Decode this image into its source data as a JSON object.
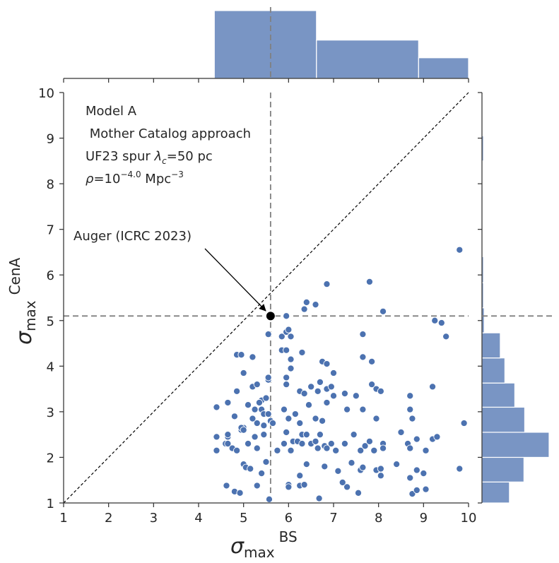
{
  "chart_data": {
    "type": "scatter",
    "title": "",
    "xlabel": "σ_max BS",
    "ylabel": "σ_max CenA",
    "xlim": [
      1,
      10
    ],
    "ylim": [
      1,
      10
    ],
    "xticks": [
      "1",
      "2",
      "3",
      "4",
      "5",
      "6",
      "7",
      "8",
      "9",
      "10"
    ],
    "yticks": [
      "1",
      "2",
      "3",
      "4",
      "5",
      "6",
      "7",
      "8",
      "9",
      "10"
    ],
    "x_axis_label": {
      "symbol": "σ",
      "subscript": "max",
      "superscript": "BS"
    },
    "y_axis_label": {
      "symbol": "σ",
      "subscript": "max",
      "superscript": "CenA"
    },
    "info_text": {
      "line1": "Model A",
      "line2": " Mother Catalog approach",
      "line3_prefix": "UF23 spur ",
      "line3_symbol": "λ",
      "line3_subscript": "c",
      "line3_suffix": "=50 pc",
      "line4_symbol": "ρ",
      "line4_mid": "=10",
      "line4_exponent": "−4.0",
      "line4_unit": " Mpc",
      "line4_unit_exponent": "−3"
    },
    "auger": {
      "label": "Auger (ICRC 2023)",
      "x": 5.6,
      "y": 5.1
    },
    "diagonal": {
      "from": [
        1,
        1
      ],
      "to": [
        10,
        10
      ]
    },
    "colors": {
      "points": "#4c72b0",
      "hist": "#4c72b0",
      "reference": "#808080",
      "auger": "#000000"
    },
    "histogram_x": {
      "bins": [
        {
          "from": 4.35,
          "to": 6.62,
          "count": 23
        },
        {
          "from": 6.62,
          "to": 8.89,
          "count": 13
        },
        {
          "from": 8.89,
          "to": 10.0,
          "count": 7
        }
      ]
    },
    "histogram_y": {
      "bins": [
        {
          "from": 1.0,
          "to": 1.46,
          "count": 36
        },
        {
          "from": 1.46,
          "to": 2.0,
          "count": 55
        },
        {
          "from": 2.0,
          "to": 2.55,
          "count": 88
        },
        {
          "from": 2.55,
          "to": 3.1,
          "count": 56
        },
        {
          "from": 3.1,
          "to": 3.63,
          "count": 43
        },
        {
          "from": 3.63,
          "to": 4.18,
          "count": 30
        },
        {
          "from": 4.18,
          "to": 4.73,
          "count": 24
        },
        {
          "from": 4.73,
          "to": 5.28,
          "count": 3
        },
        {
          "from": 5.28,
          "to": 5.83,
          "count": 2
        },
        {
          "from": 5.83,
          "to": 6.4,
          "count": 2
        },
        {
          "from": 6.4,
          "to": 6.93,
          "count": 1
        },
        {
          "from": 8.5,
          "to": 9.05,
          "count": 2
        },
        {
          "from": 9.05,
          "to": 9.6,
          "count": 1
        }
      ]
    },
    "points": [
      [
        5.57,
        1.08
      ],
      [
        4.8,
        1.25
      ],
      [
        4.92,
        1.22
      ],
      [
        5.3,
        1.38
      ],
      [
        6.0,
        1.4
      ],
      [
        6.0,
        1.35
      ],
      [
        6.25,
        1.38
      ],
      [
        6.35,
        1.4
      ],
      [
        6.68,
        1.1
      ],
      [
        7.3,
        1.35
      ],
      [
        7.55,
        1.22
      ],
      [
        7.2,
        1.45
      ],
      [
        8.75,
        1.2
      ],
      [
        8.85,
        1.28
      ],
      [
        9.05,
        1.3
      ],
      [
        9.8,
        1.75
      ],
      [
        4.62,
        1.38
      ],
      [
        5.0,
        1.85
      ],
      [
        5.05,
        1.78
      ],
      [
        5.15,
        1.75
      ],
      [
        5.4,
        1.65
      ],
      [
        5.5,
        1.9
      ],
      [
        6.25,
        1.6
      ],
      [
        6.4,
        1.85
      ],
      [
        6.8,
        1.8
      ],
      [
        7.1,
        1.7
      ],
      [
        7.6,
        1.72
      ],
      [
        7.65,
        1.78
      ],
      [
        7.4,
        1.88
      ],
      [
        7.95,
        1.72
      ],
      [
        8.05,
        1.75
      ],
      [
        8.05,
        1.6
      ],
      [
        8.4,
        1.85
      ],
      [
        8.7,
        1.55
      ],
      [
        8.85,
        1.72
      ],
      [
        9.0,
        1.65
      ],
      [
        4.4,
        2.15
      ],
      [
        4.4,
        2.45
      ],
      [
        4.6,
        2.3
      ],
      [
        4.65,
        2.3
      ],
      [
        4.65,
        2.45
      ],
      [
        4.65,
        2.5
      ],
      [
        4.75,
        2.2
      ],
      [
        4.85,
        2.15
      ],
      [
        4.95,
        2.6
      ],
      [
        5.0,
        2.65
      ],
      [
        5.1,
        2.3
      ],
      [
        5.25,
        2.45
      ],
      [
        5.3,
        2.2
      ],
      [
        5.45,
        2.7
      ],
      [
        5.45,
        2.5
      ],
      [
        5.75,
        2.15
      ],
      [
        5.9,
        2.3
      ],
      [
        5.95,
        2.55
      ],
      [
        6.05,
        2.15
      ],
      [
        6.1,
        2.35
      ],
      [
        6.2,
        2.35
      ],
      [
        6.3,
        2.3
      ],
      [
        6.3,
        2.5
      ],
      [
        6.4,
        2.5
      ],
      [
        6.5,
        2.3
      ],
      [
        6.6,
        2.35
      ],
      [
        6.65,
        2.2
      ],
      [
        6.7,
        2.5
      ],
      [
        6.8,
        2.25
      ],
      [
        6.85,
        2.2
      ],
      [
        6.95,
        2.3
      ],
      [
        7.05,
        2.15
      ],
      [
        7.25,
        2.3
      ],
      [
        7.45,
        2.5
      ],
      [
        7.6,
        2.15
      ],
      [
        7.7,
        2.25
      ],
      [
        7.8,
        2.35
      ],
      [
        7.9,
        2.15
      ],
      [
        8.1,
        2.3
      ],
      [
        8.1,
        2.2
      ],
      [
        8.5,
        2.55
      ],
      [
        8.65,
        2.3
      ],
      [
        8.7,
        2.2
      ],
      [
        8.85,
        2.4
      ],
      [
        9.05,
        2.15
      ],
      [
        9.2,
        2.4
      ],
      [
        9.3,
        2.45
      ],
      [
        9.9,
        2.75
      ],
      [
        4.4,
        3.1
      ],
      [
        4.65,
        3.2
      ],
      [
        4.8,
        2.9
      ],
      [
        4.95,
        2.65
      ],
      [
        5.0,
        2.6
      ],
      [
        5.1,
        3.15
      ],
      [
        5.2,
        2.85
      ],
      [
        5.25,
        3.05
      ],
      [
        5.3,
        2.75
      ],
      [
        5.4,
        3.05
      ],
      [
        5.4,
        3.25
      ],
      [
        5.45,
        2.95
      ],
      [
        5.5,
        3.3
      ],
      [
        5.55,
        2.95
      ],
      [
        5.6,
        2.8
      ],
      [
        5.65,
        2.75
      ],
      [
        5.9,
        3.05
      ],
      [
        6.0,
        2.85
      ],
      [
        6.15,
        2.95
      ],
      [
        6.25,
        2.75
      ],
      [
        6.45,
        3.15
      ],
      [
        6.6,
        2.85
      ],
      [
        6.75,
        2.8
      ],
      [
        6.85,
        3.2
      ],
      [
        7.0,
        3.35
      ],
      [
        7.3,
        3.05
      ],
      [
        7.5,
        3.35
      ],
      [
        7.65,
        3.05
      ],
      [
        7.95,
        2.85
      ],
      [
        8.7,
        3.05
      ],
      [
        8.75,
        2.85
      ],
      [
        8.7,
        3.35
      ],
      [
        4.85,
        3.45
      ],
      [
        5.0,
        3.85
      ],
      [
        5.2,
        3.55
      ],
      [
        5.3,
        3.6
      ],
      [
        5.35,
        3.2
      ],
      [
        5.55,
        3.7
      ],
      [
        5.95,
        3.75
      ],
      [
        5.95,
        3.6
      ],
      [
        6.25,
        3.45
      ],
      [
        6.35,
        3.4
      ],
      [
        6.5,
        3.55
      ],
      [
        6.65,
        3.45
      ],
      [
        6.7,
        3.65
      ],
      [
        6.85,
        3.5
      ],
      [
        6.95,
        3.55
      ],
      [
        7.0,
        3.85
      ],
      [
        7.25,
        3.4
      ],
      [
        7.85,
        3.6
      ],
      [
        7.95,
        3.5
      ],
      [
        8.05,
        3.45
      ],
      [
        9.2,
        3.55
      ],
      [
        5.55,
        3.75
      ],
      [
        4.85,
        4.25
      ],
      [
        4.95,
        4.25
      ],
      [
        5.2,
        4.2
      ],
      [
        5.85,
        4.35
      ],
      [
        5.95,
        4.35
      ],
      [
        6.05,
        4.15
      ],
      [
        6.05,
        3.95
      ],
      [
        6.3,
        4.3
      ],
      [
        6.75,
        4.1
      ],
      [
        6.85,
        4.05
      ],
      [
        7.65,
        4.2
      ],
      [
        7.85,
        4.1
      ],
      [
        5.55,
        4.7
      ],
      [
        5.85,
        4.65
      ],
      [
        5.95,
        4.75
      ],
      [
        6.0,
        4.8
      ],
      [
        6.05,
        4.65
      ],
      [
        7.65,
        4.7
      ],
      [
        9.25,
        5.0
      ],
      [
        9.4,
        4.95
      ],
      [
        9.5,
        4.65
      ],
      [
        5.95,
        5.1
      ],
      [
        6.35,
        5.25
      ],
      [
        6.4,
        5.4
      ],
      [
        6.6,
        5.35
      ],
      [
        6.85,
        5.8
      ],
      [
        7.8,
        5.85
      ],
      [
        8.1,
        5.2
      ],
      [
        9.8,
        6.55
      ]
    ]
  }
}
